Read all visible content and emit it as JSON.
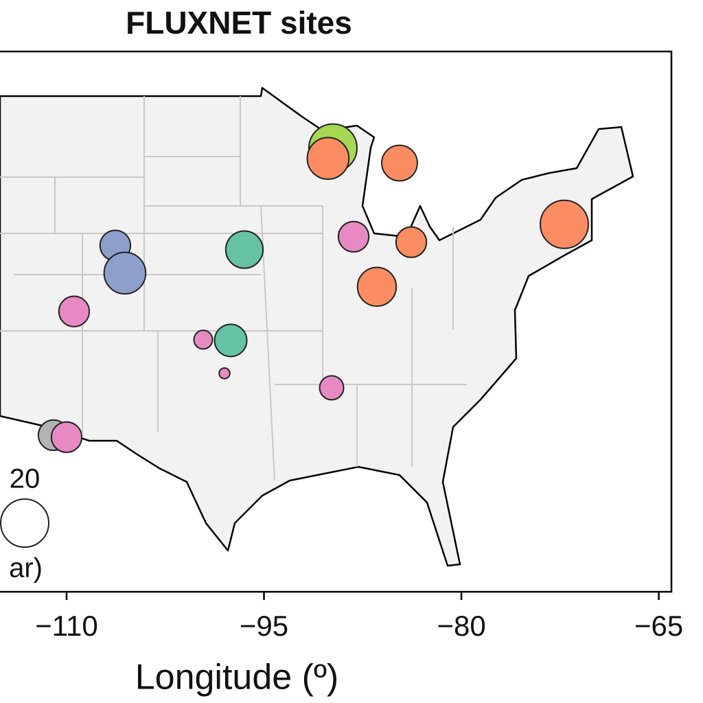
{
  "chart_data": {
    "type": "bubble",
    "title": "FLUXNET sites",
    "x_label": "Longitude (º)",
    "xlim": [
      -115.06,
      -64.04
    ],
    "ylim": [
      23.7,
      51.3
    ],
    "xticks": [
      {
        "value": -110,
        "label": "−110"
      },
      {
        "value": -95,
        "label": "−95"
      },
      {
        "value": -80,
        "label": "−80"
      },
      {
        "value": -65,
        "label": "−65"
      }
    ],
    "series": [
      {
        "color": "#a6d854",
        "x": [
          -89.76
        ],
        "y": [
          46.37
        ],
        "sizes": [
          20
        ]
      },
      {
        "color": "#fc8d62",
        "x": [
          -90.13,
          -84.7,
          -72.18,
          -83.81,
          -86.42
        ],
        "y": [
          45.84,
          45.6,
          42.47,
          41.56,
          39.28
        ],
        "sizes": [
          15,
          11,
          20,
          8,
          13
        ]
      },
      {
        "color": "#8da0cb",
        "x": [
          -106.3,
          -105.57
        ],
        "y": [
          41.39,
          39.98
        ],
        "sizes": [
          8,
          15
        ]
      },
      {
        "color": "#66c2a5",
        "x": [
          -96.49,
          -97.53
        ],
        "y": [
          41.18,
          36.54
        ],
        "sizes": [
          12,
          9
        ]
      },
      {
        "color": "#b3b3b3",
        "x": [
          -110.99
        ],
        "y": [
          31.7
        ],
        "sizes": [
          8
        ]
      },
      {
        "color": "#e78ac3",
        "x": [
          -88.19,
          -109.43,
          -99.62,
          -98.0,
          -89.86,
          -110.0
        ],
        "y": [
          41.84,
          38.02,
          36.58,
          34.86,
          34.12,
          31.6
        ],
        "sizes": [
          8,
          8,
          3,
          1,
          5,
          8
        ]
      }
    ],
    "size_legend": {
      "values": [
        20
      ],
      "label": "ar)"
    }
  }
}
